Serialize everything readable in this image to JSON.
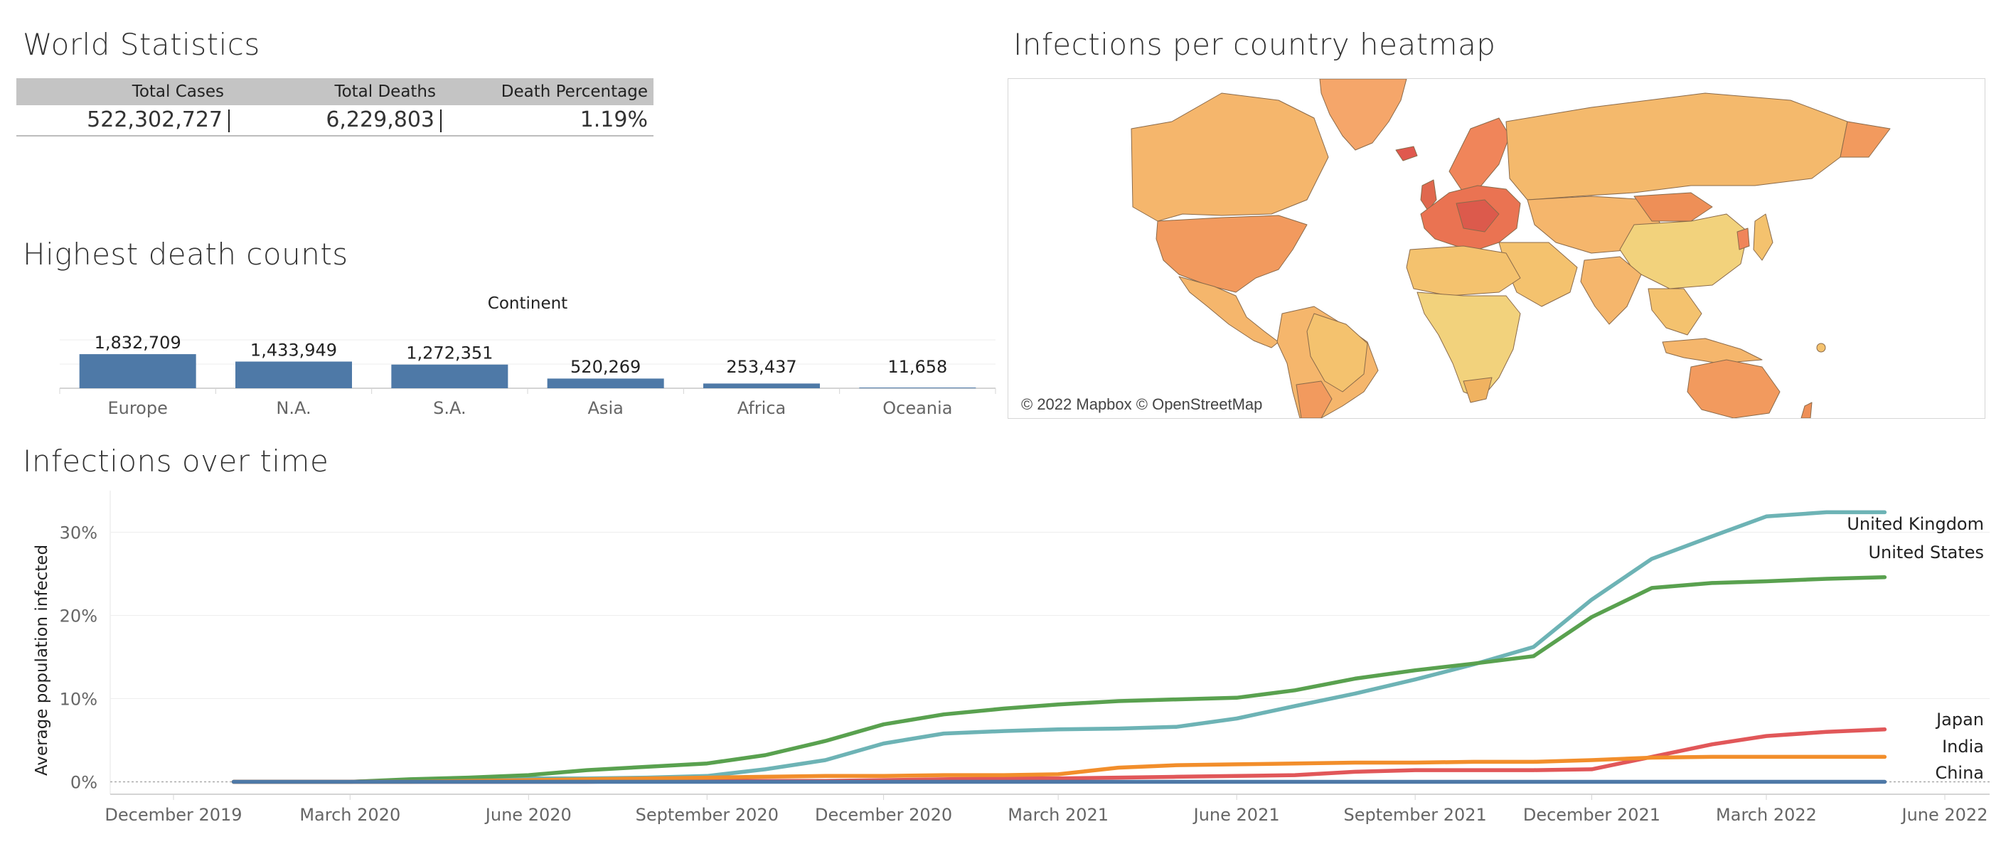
{
  "world_stats": {
    "title": "World Statistics",
    "headers": [
      "Total Cases",
      "Total Deaths",
      "Death Percentage"
    ],
    "values": [
      "522,302,727",
      "6,229,803",
      "1.19%"
    ]
  },
  "heatmap": {
    "title": "Infections per country heatmap",
    "credit": "© 2022 Mapbox © OpenStreetMap",
    "colors": {
      "low": "#f2d27c",
      "mid": "#f0b260",
      "high": "#ee8f57",
      "max": "#d9534f"
    }
  },
  "death_counts": {
    "title": "Highest death counts"
  },
  "infections": {
    "title": "Infections over time"
  },
  "chart_data": [
    {
      "type": "bar",
      "title": "Highest death counts",
      "xlabel": "Continent",
      "categories": [
        "Europe",
        "N.A.",
        "S.A.",
        "Asia",
        "Africa",
        "Oceania"
      ],
      "values": [
        1832709,
        1433949,
        1272351,
        520269,
        253437,
        11658
      ],
      "value_labels": [
        "1,832,709",
        "1,433,949",
        "1,272,351",
        "520,269",
        "253,437",
        "11,658"
      ],
      "color": "#4e79a7",
      "ylim": [
        0,
        2600000
      ]
    },
    {
      "type": "line",
      "title": "Infections over time",
      "ylabel": "Average population infected",
      "x_ticks": [
        "December 2019",
        "March 2020",
        "June 2020",
        "September 2020",
        "December 2020",
        "March 2021",
        "June 2021",
        "September 2021",
        "December 2021",
        "March 2022",
        "June 2022"
      ],
      "y_ticks": [
        "0%",
        "10%",
        "20%",
        "30%"
      ],
      "ylim": [
        -1.5,
        35
      ],
      "x": [
        "2020-01",
        "2020-02",
        "2020-03",
        "2020-04",
        "2020-05",
        "2020-06",
        "2020-07",
        "2020-08",
        "2020-09",
        "2020-10",
        "2020-11",
        "2020-12",
        "2021-01",
        "2021-02",
        "2021-03",
        "2021-04",
        "2021-05",
        "2021-06",
        "2021-07",
        "2021-08",
        "2021-09",
        "2021-10",
        "2021-11",
        "2021-12",
        "2022-01",
        "2022-02",
        "2022-03",
        "2022-04",
        "2022-05"
      ],
      "series": [
        {
          "name": "United Kingdom",
          "color": "#6db3b5",
          "values": [
            0,
            0,
            0,
            0.2,
            0.3,
            0.4,
            0.4,
            0.5,
            0.7,
            1.5,
            2.6,
            4.6,
            5.8,
            6.1,
            6.3,
            6.4,
            6.6,
            7.6,
            9.1,
            10.6,
            12.3,
            14.1,
            16.2,
            21.9,
            26.8,
            29.5,
            31.9,
            32.4,
            32.4
          ]
        },
        {
          "name": "United States",
          "color": "#59a14f",
          "values": [
            0,
            0,
            0,
            0.3,
            0.5,
            0.8,
            1.4,
            1.8,
            2.2,
            3.2,
            4.9,
            6.9,
            8.1,
            8.8,
            9.3,
            9.7,
            9.9,
            10.1,
            11.0,
            12.4,
            13.4,
            14.2,
            15.1,
            19.8,
            23.3,
            23.9,
            24.1,
            24.4,
            24.6
          ]
        },
        {
          "name": "Japan",
          "color": "#e15759",
          "values": [
            0,
            0,
            0,
            0,
            0,
            0,
            0,
            0.1,
            0.1,
            0.1,
            0.1,
            0.2,
            0.3,
            0.4,
            0.4,
            0.5,
            0.6,
            0.7,
            0.8,
            1.2,
            1.4,
            1.4,
            1.4,
            1.5,
            3.0,
            4.5,
            5.5,
            6.0,
            6.3
          ]
        },
        {
          "name": "India",
          "color": "#f28e2b",
          "values": [
            0,
            0,
            0,
            0,
            0.1,
            0.2,
            0.3,
            0.4,
            0.5,
            0.6,
            0.7,
            0.7,
            0.8,
            0.8,
            0.9,
            1.7,
            2.0,
            2.1,
            2.2,
            2.3,
            2.3,
            2.4,
            2.4,
            2.6,
            2.9,
            3.0,
            3.0,
            3.0,
            3.0
          ]
        },
        {
          "name": "China",
          "color": "#4e79a7",
          "values": [
            0,
            0,
            0,
            0,
            0,
            0,
            0,
            0,
            0,
            0,
            0,
            0,
            0,
            0,
            0,
            0,
            0,
            0,
            0,
            0,
            0,
            0,
            0,
            0,
            0,
            0,
            0,
            0,
            0
          ]
        }
      ]
    }
  ]
}
